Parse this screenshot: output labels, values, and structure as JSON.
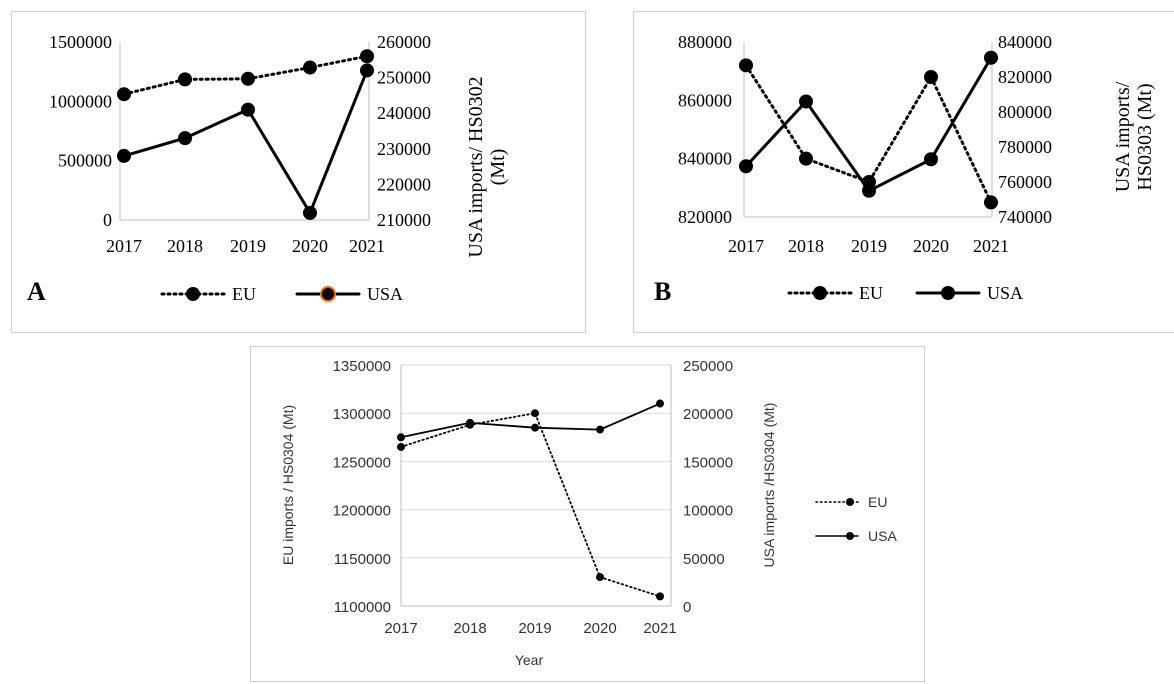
{
  "chart_data": [
    {
      "panel_label": "A",
      "type": "line",
      "x": [
        "2017",
        "2018",
        "2019",
        "2020",
        "2021"
      ],
      "ylabel_left": "",
      "ylabel_right": "USA imports/ HS0302 (Mt)",
      "ylim_left": [
        0,
        1500000
      ],
      "yticks_left": [
        "0",
        "500000",
        "1000000",
        "1500000"
      ],
      "ylim_right": [
        210000,
        260000
      ],
      "yticks_right": [
        "210000",
        "220000",
        "230000",
        "240000",
        "250000",
        "260000"
      ],
      "grid": false,
      "legend": "bottom",
      "series": [
        {
          "name": "EU",
          "axis": "left",
          "style": "dotted",
          "values": [
            1060000,
            1185000,
            1190000,
            1285000,
            1380000
          ]
        },
        {
          "name": "USA",
          "axis": "right",
          "style": "solid",
          "values": [
            228000,
            233000,
            241000,
            212000,
            252000
          ]
        }
      ]
    },
    {
      "panel_label": "B",
      "type": "line",
      "x": [
        "2017",
        "2018",
        "2019",
        "2020",
        "2021"
      ],
      "ylabel_left": "",
      "ylabel_right": "USA imports/ HS0303 (Mt)",
      "ylim_left": [
        820000,
        880000
      ],
      "yticks_left": [
        "820000",
        "840000",
        "860000",
        "880000"
      ],
      "ylim_right": [
        740000,
        840000
      ],
      "yticks_right": [
        "740000",
        "760000",
        "780000",
        "800000",
        "820000",
        "840000"
      ],
      "grid": false,
      "legend": "bottom",
      "series": [
        {
          "name": "EU",
          "axis": "left",
          "style": "dotted",
          "values": [
            872000,
            840000,
            832000,
            868000,
            825000
          ]
        },
        {
          "name": "USA",
          "axis": "right",
          "style": "solid",
          "values": [
            769000,
            806000,
            755000,
            773000,
            831000
          ]
        }
      ]
    },
    {
      "panel_label": "",
      "type": "line",
      "x": [
        "2017",
        "2018",
        "2019",
        "2020",
        "2021"
      ],
      "xlabel": "Year",
      "ylabel_left": "EU imports / HS0304 (Mt)",
      "ylabel_right": "USA imports /HS0304 (Mt)",
      "ylim_left": [
        1100000,
        1350000
      ],
      "yticks_left": [
        "1100000",
        "1150000",
        "1200000",
        "1250000",
        "1300000",
        "1350000"
      ],
      "ylim_right": [
        0,
        250000
      ],
      "yticks_right": [
        "0",
        "50000",
        "100000",
        "150000",
        "200000",
        "250000"
      ],
      "grid": true,
      "legend": "right",
      "series": [
        {
          "name": "EU",
          "axis": "left",
          "style": "dotted",
          "values": [
            1265000,
            1288000,
            1300000,
            1130000,
            1110000
          ]
        },
        {
          "name": "USA",
          "axis": "right",
          "style": "solid",
          "values": [
            175000,
            190000,
            185000,
            183000,
            210000
          ]
        }
      ]
    }
  ],
  "colors": {
    "line": "#000000",
    "grid": "#d9d9d9",
    "axis": "#bfbfbf",
    "usa_legend_marker_ring_panel_a": "#e07020"
  }
}
